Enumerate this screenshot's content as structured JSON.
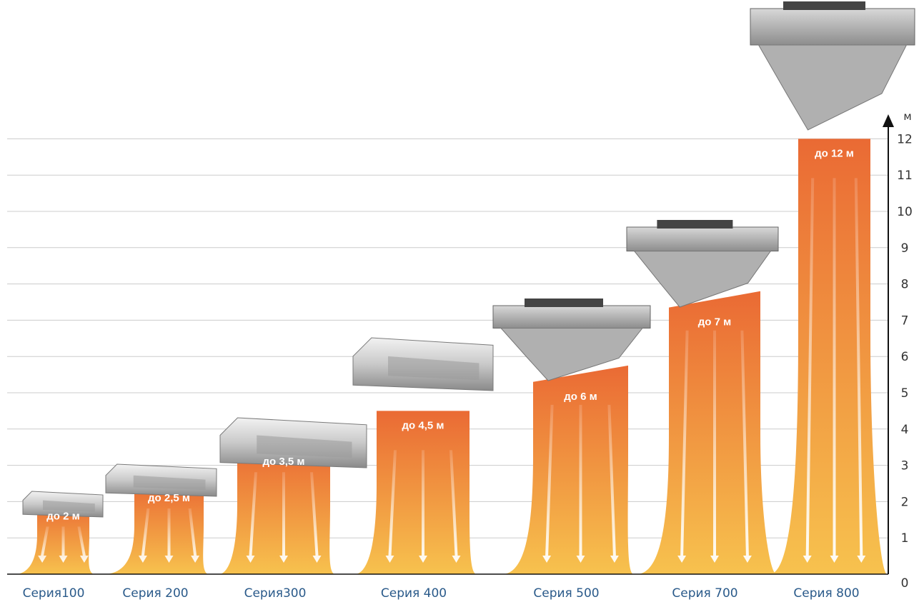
{
  "chart_data": {
    "type": "bar",
    "ylabel": "м",
    "ylim": [
      0,
      12
    ],
    "yticks": [
      "0",
      "1",
      "2",
      "3",
      "4",
      "5",
      "6",
      "7",
      "8",
      "9",
      "10",
      "11",
      "12"
    ],
    "grid": true,
    "categories": [
      "Серия100",
      "Серия 200",
      "Серия300",
      "Серия 400",
      "Серия 500",
      "Серия 700",
      "Серия 800"
    ],
    "values": [
      2,
      2.5,
      3.5,
      4.5,
      6,
      7,
      12
    ],
    "data_labels": [
      "до 2 м",
      "до 2,5 м",
      "до 3,5 м",
      "до 4,5 м",
      "до 6 м",
      "до 7 м",
      "до 12 м"
    ],
    "colors": {
      "top": "#ea6a34",
      "bottom": "#f7c24e",
      "arrow": "#ffffff",
      "grid": "#cccccc",
      "axis": "#111111",
      "category_text": "#2a5a8a"
    },
    "icons": [
      "air-curtain-icon",
      "air-curtain-icon",
      "air-curtain-icon",
      "air-curtain-icon",
      "industrial-air-curtain-icon",
      "industrial-air-curtain-icon",
      "industrial-air-curtain-icon"
    ]
  }
}
